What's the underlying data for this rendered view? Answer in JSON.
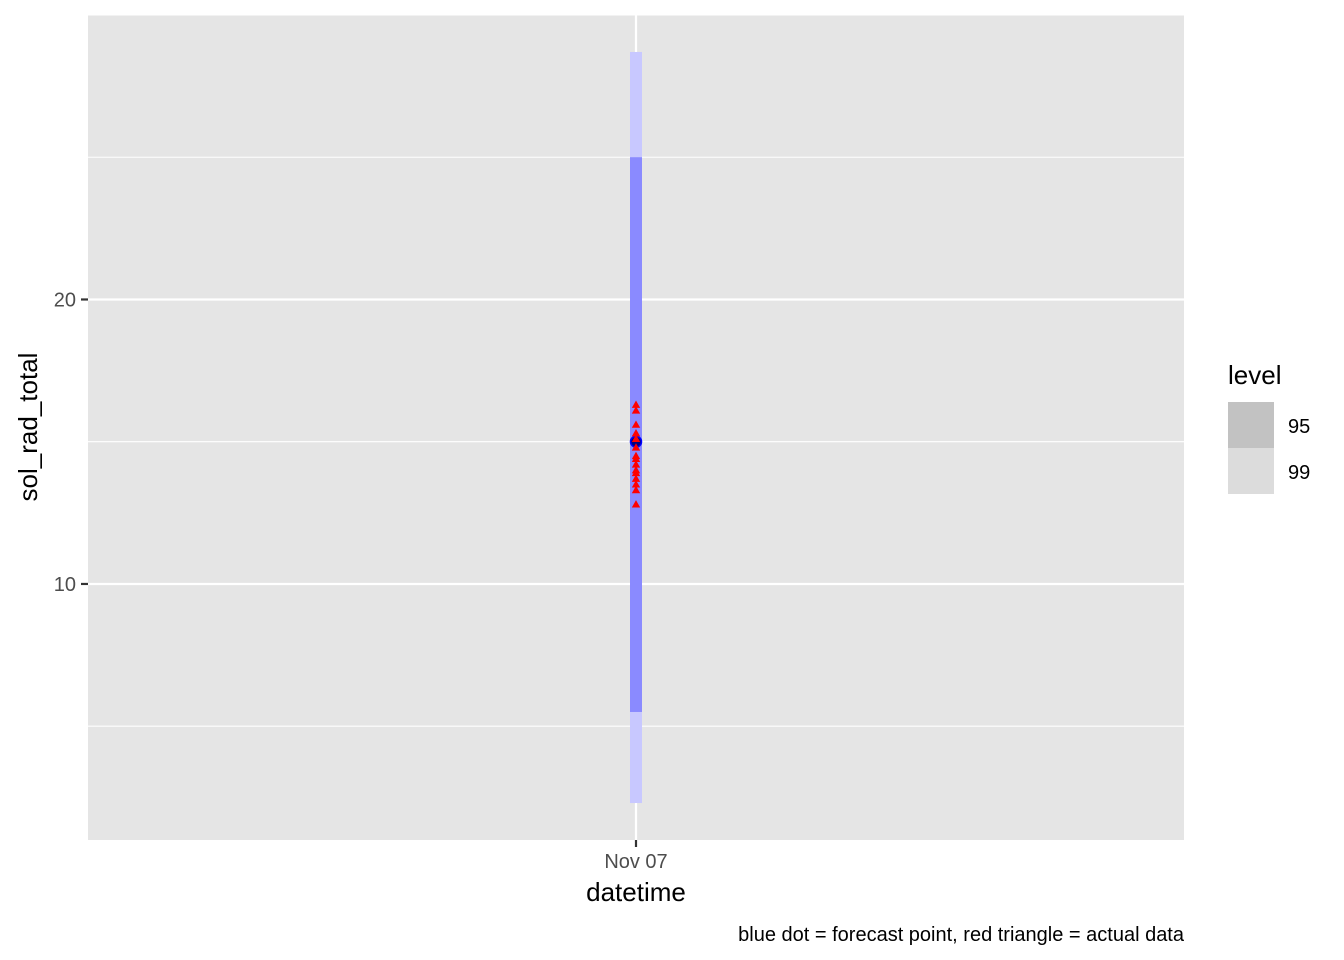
{
  "chart_data": {
    "type": "scatter",
    "title": "",
    "xlabel": "datetime",
    "ylabel": "sol_rad_total",
    "x_ticks": [
      "Nov 07"
    ],
    "y_ticks": [
      10,
      20
    ],
    "ylim": [
      1.0,
      30.0
    ],
    "grid": true,
    "caption": "blue dot = forecast point, red triangle = actual data",
    "legend": {
      "title": "level",
      "placement": "right",
      "entries": [
        {
          "label": "95",
          "color": "#c2c2c2"
        },
        {
          "label": "99",
          "color": "#dcdcdc"
        }
      ]
    },
    "intervals": [
      {
        "level": "99",
        "x": "Nov 07",
        "lower": 2.3,
        "upper": 28.7,
        "color": "#c8c8ff"
      },
      {
        "level": "95",
        "x": "Nov 07",
        "lower": 5.5,
        "upper": 25.0,
        "color": "#8a8aff"
      }
    ],
    "forecast_point": {
      "x": "Nov 07",
      "y": 15.0,
      "color": "#0000ff",
      "label": "forecast point"
    },
    "actual_data": {
      "x": "Nov 07",
      "color": "#ff0000",
      "y": [
        12.8,
        13.3,
        13.5,
        13.7,
        13.9,
        14.0,
        14.2,
        14.4,
        14.5,
        14.8,
        15.1,
        15.3,
        15.6,
        16.1,
        16.3
      ]
    },
    "colors": {
      "panel": "#e5e5e5",
      "grid": "#ffffff"
    }
  }
}
